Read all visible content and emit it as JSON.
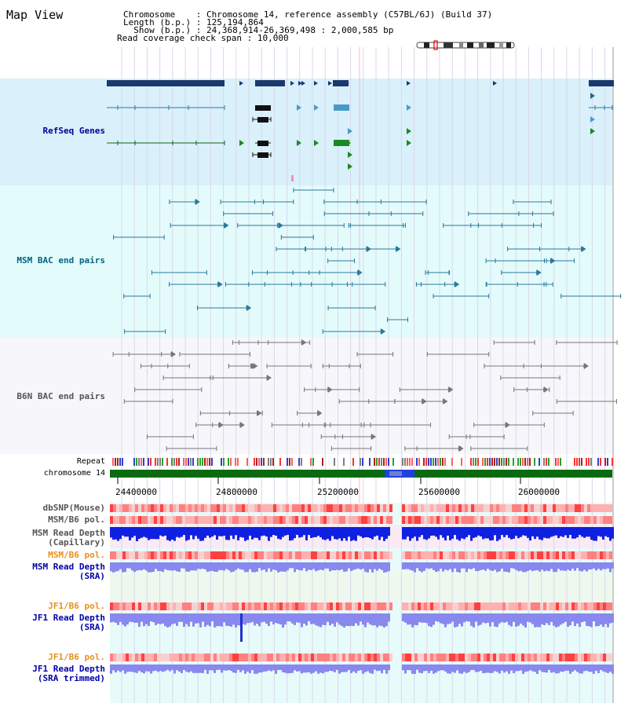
{
  "title": "Map View",
  "header": {
    "rows": [
      {
        "key": "Chromosome    ",
        "value": "Chromosome 14, reference assembly (C57BL/6J) (Build 37)"
      },
      {
        "key": "Length (b.p.) ",
        "value": "125,194,864"
      },
      {
        "key": "  Show (b.p.) ",
        "value": "24,368,914-26,369,498 : 2,000,585 bp"
      },
      {
        "key": "Read coverage check span",
        "value": "10,000"
      }
    ]
  },
  "tracks": {
    "refseq": {
      "label": "RefSeq Genes",
      "color": "#000099",
      "bg": "#daf0fb"
    },
    "msm_bac": {
      "label": "MSM BAC end pairs",
      "color": "#006680",
      "bg": "#e4fbfc"
    },
    "b6n_bac": {
      "label": "B6N BAC end pairs",
      "color": "#555555",
      "bg": "#f7f7fb"
    },
    "repeat": {
      "label": "Repeat"
    },
    "chromosome": {
      "label": "chromosome 14"
    },
    "dbsnp": {
      "label": "dbSNP(Mouse)",
      "color": "#555555"
    },
    "msm_b6_pol": {
      "label": "MSM/B6 pol.",
      "color": "#555555"
    },
    "msm_depth_cap": {
      "label": "MSM Read Depth\n(Capillary)",
      "color": "#555555"
    },
    "msm_b6_pol_2": {
      "label": "MSM/B6 pol.",
      "color": "#e8901a"
    },
    "msm_depth_sra": {
      "label": "MSM Read Depth\n(SRA)",
      "color": "#0000aa"
    },
    "jf1_b6_pol": {
      "label": "JF1/B6 pol.",
      "color": "#e8901a"
    },
    "jf1_depth_sra": {
      "label": "JF1 Read Depth\n(SRA)",
      "color": "#0000aa"
    },
    "jf1_b6_pol_2": {
      "label": "JF1/B6 pol.",
      "color": "#e8901a"
    },
    "jf1_depth_trim": {
      "label": "JF1 Read Depth\n(SRA trimmed)",
      "color": "#0000aa"
    }
  },
  "axis": {
    "ticks": [
      "24400000",
      "24800000",
      "25200000",
      "25600000",
      "26000000"
    ]
  },
  "colors": {
    "refseq_gene": "#1a3a6e",
    "msm_bac": "#2a7a9a",
    "b6n_bac": "#777777",
    "chromosome_band": "#0a6a10",
    "depth_blue": "#1020e0",
    "depth_light": "#8888ee"
  }
}
